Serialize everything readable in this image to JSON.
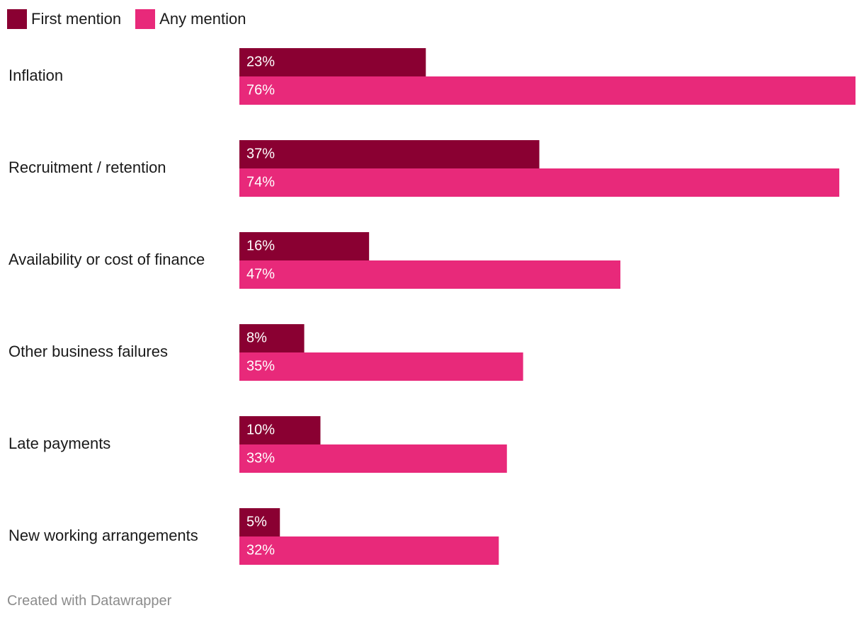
{
  "chart_data": {
    "type": "bar",
    "orientation": "horizontal",
    "categories": [
      "Inflation",
      "Recruitment / retention",
      "Availability or cost of finance",
      "Other business failures",
      "Late payments",
      "New working arrangements"
    ],
    "series": [
      {
        "name": "First mention",
        "color": "#8a0032",
        "values": [
          23,
          37,
          16,
          8,
          10,
          5
        ],
        "labels": [
          "23%",
          "37%",
          "16%",
          "8%",
          "10%",
          "5%"
        ]
      },
      {
        "name": "Any mention",
        "color": "#e8297a",
        "values": [
          76,
          74,
          47,
          35,
          33,
          32
        ],
        "labels": [
          "76%",
          "74%",
          "47%",
          "35%",
          "33%",
          "32%"
        ]
      }
    ],
    "unit": "%",
    "xlim": [
      0,
      76
    ],
    "grid": false,
    "legend": "top-left"
  },
  "footer": {
    "credit": "Created with Datawrapper"
  }
}
